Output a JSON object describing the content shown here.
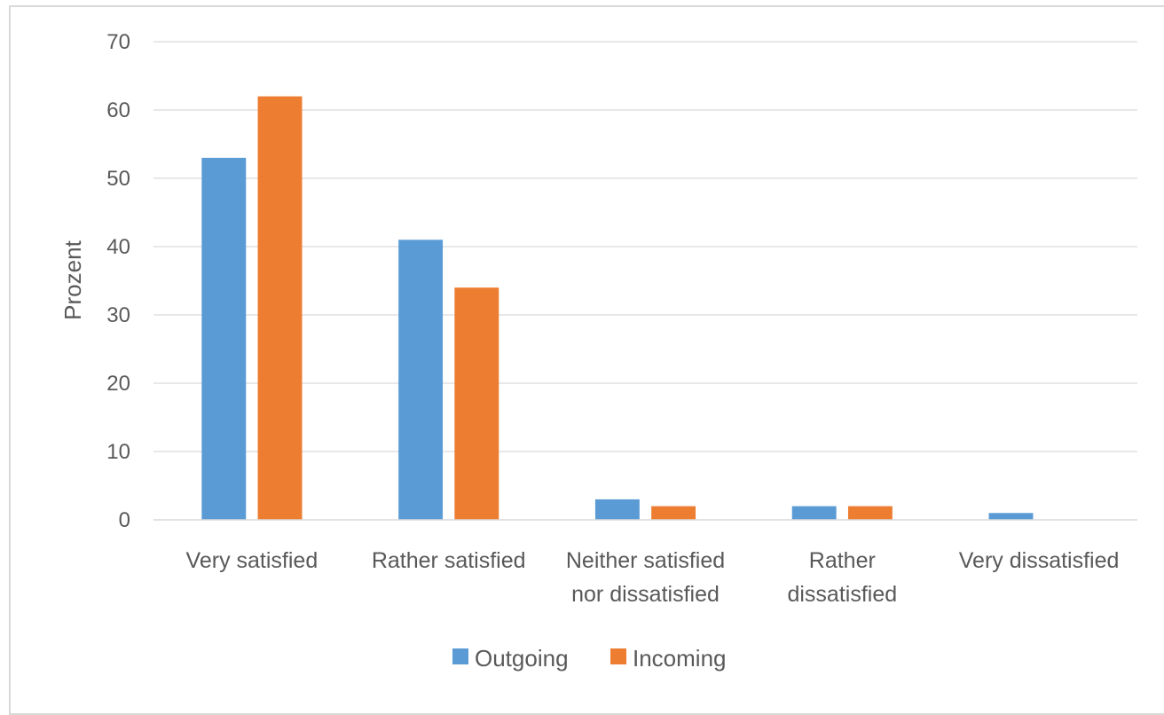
{
  "chart_data": {
    "type": "bar",
    "title": "",
    "xlabel": "",
    "ylabel": "Prozent",
    "ylim": [
      0,
      70
    ],
    "yticks": [
      0,
      10,
      20,
      30,
      40,
      50,
      60,
      70
    ],
    "grid": true,
    "legend_position": "bottom",
    "categories": [
      [
        "Very satisfied"
      ],
      [
        "Rather satisfied"
      ],
      [
        "Neither satisfied",
        "nor dissatisfied"
      ],
      [
        "Rather",
        "dissatisfied"
      ],
      [
        "Very dissatisfied"
      ]
    ],
    "series": [
      {
        "name": "Outgoing",
        "color": "#5b9bd5",
        "values": [
          53,
          41,
          3,
          2,
          1
        ]
      },
      {
        "name": "Incoming",
        "color": "#ed7d31",
        "values": [
          62,
          34,
          2,
          2,
          0
        ]
      }
    ]
  }
}
